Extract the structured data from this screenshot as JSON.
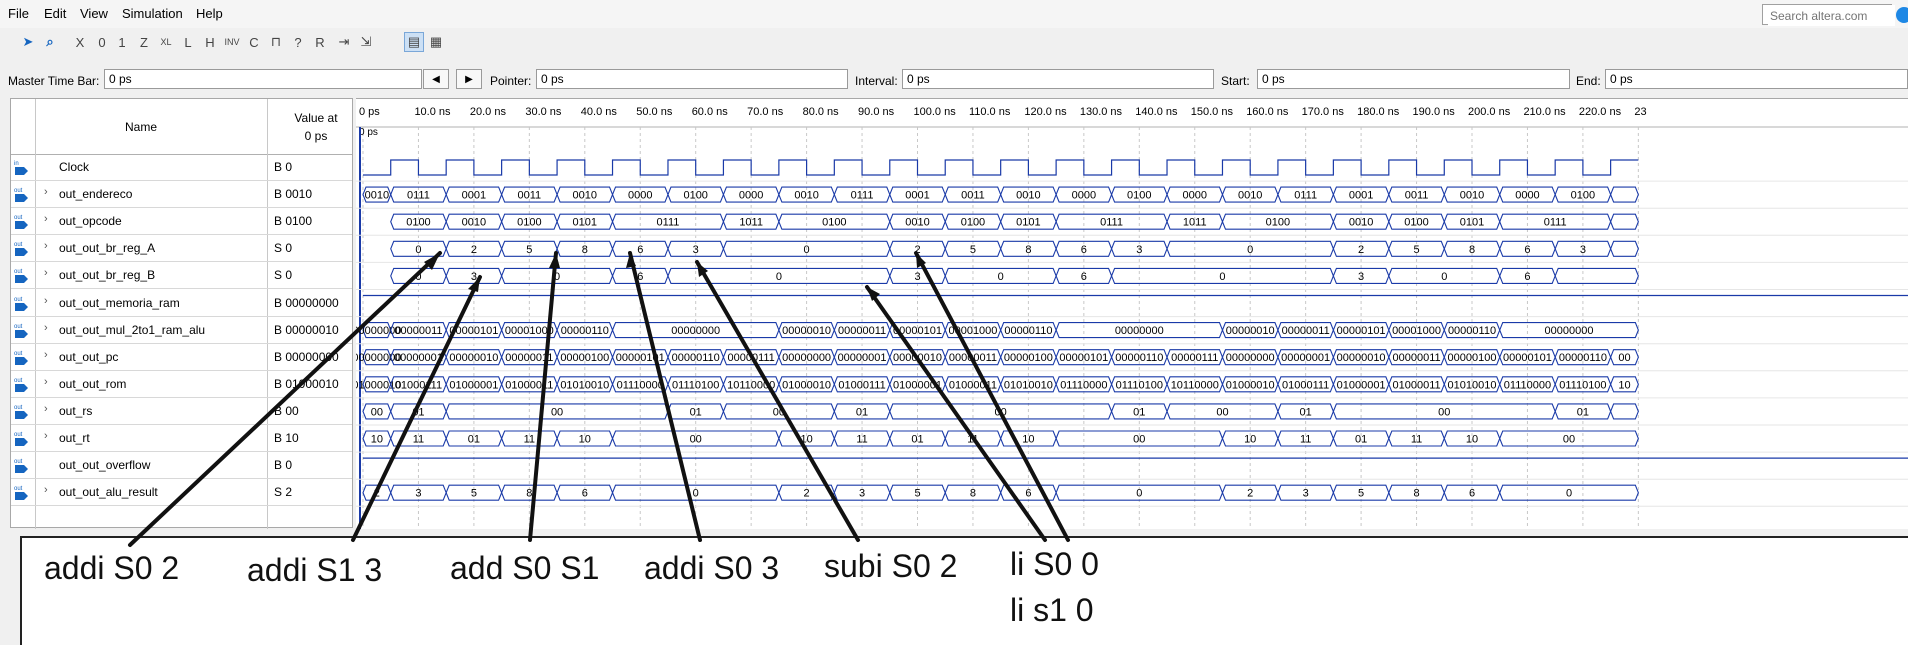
{
  "menu": [
    "File",
    "Edit",
    "View",
    "Simulation",
    "Help"
  ],
  "search": {
    "placeholder": "Search altera.com"
  },
  "toolbar": {
    "icons": [
      "pointer-icon",
      "zoom-icon",
      "force-unknown-icon",
      "force-low-icon",
      "force-high-icon",
      "force-hiz-icon",
      "force-weak-unknown-icon",
      "force-weak-low-icon",
      "force-weak-high-icon",
      "invert-icon",
      "count-value-icon",
      "forcing-clock-icon",
      "arbitrary-value-icon",
      "random-value-icon",
      "snap-to-grid-icon",
      "grid-settings-icon",
      "waveform-view-icon",
      "fit-view-icon"
    ]
  },
  "timebar": {
    "master_label": "Master Time Bar:",
    "master_value": "0 ps",
    "pointer_label": "Pointer:",
    "pointer_value": "0 ps",
    "interval_label": "Interval:",
    "interval_value": "0 ps",
    "start_label": "Start:",
    "start_value": "0 ps",
    "end_label": "End:",
    "end_value": "0 ps"
  },
  "grid": {
    "name_header": "Name",
    "value_header_1": "Value at",
    "value_header_2": "0 ps",
    "time_ticks": [
      "0 ps",
      "10.0 ns",
      "20.0 ns",
      "30.0 ns",
      "40.0 ns",
      "50.0 ns",
      "60.0 ns",
      "70.0 ns",
      "80.0 ns",
      "90.0 ns",
      "100.0 ns",
      "110.0 ns",
      "120.0 ns",
      "130.0 ns",
      "140.0 ns",
      "150.0 ns",
      "160.0 ns",
      "170.0 ns",
      "180.0 ns",
      "190.0 ns",
      "200.0 ns",
      "210.0 ns",
      "220.0 ns",
      "23"
    ],
    "cursor_label": "0 ps"
  },
  "signals": [
    {
      "dir": "in",
      "name": "Clock",
      "value": "B 0",
      "bus": false
    },
    {
      "dir": "out",
      "name": "out_endereco",
      "value": "B 0010",
      "bus": true
    },
    {
      "dir": "out",
      "name": "out_opcode",
      "value": "B 0100",
      "bus": true
    },
    {
      "dir": "out",
      "name": "out_out_br_reg_A",
      "value": "S 0",
      "bus": true
    },
    {
      "dir": "out",
      "name": "out_out_br_reg_B",
      "value": "S 0",
      "bus": true
    },
    {
      "dir": "out",
      "name": "out_out_memoria_ram",
      "value": "B 00000000",
      "bus": true
    },
    {
      "dir": "out",
      "name": "out_out_mul_2to1_ram_alu",
      "value": "B 00000010",
      "bus": true
    },
    {
      "dir": "out",
      "name": "out_out_pc",
      "value": "B 00000000",
      "bus": true
    },
    {
      "dir": "out",
      "name": "out_out_rom",
      "value": "B 01000010",
      "bus": true
    },
    {
      "dir": "out",
      "name": "out_rs",
      "value": "B 00",
      "bus": true
    },
    {
      "dir": "out",
      "name": "out_rt",
      "value": "B 10",
      "bus": true
    },
    {
      "dir": "out",
      "name": "out_out_overflow",
      "value": "B 0",
      "bus": false
    },
    {
      "dir": "out",
      "name": "out_out_alu_result",
      "value": "S 2",
      "bus": true
    }
  ],
  "waves": {
    "out_endereco": [
      [
        "0010",
        0,
        1
      ],
      [
        "0111",
        1,
        3
      ],
      [
        "0001",
        3,
        5
      ],
      [
        "0011",
        5,
        7
      ],
      [
        "0010",
        7,
        9
      ],
      [
        "0000",
        9,
        11
      ],
      [
        "0100",
        11,
        13
      ],
      [
        "0000",
        13,
        15
      ],
      [
        "0010",
        15,
        17
      ],
      [
        "0111",
        17,
        19
      ],
      [
        "0001",
        19,
        21
      ],
      [
        "0011",
        21,
        23
      ],
      [
        "0010",
        23,
        25
      ],
      [
        "0000",
        25,
        27
      ],
      [
        "0100",
        27,
        29
      ],
      [
        "0000",
        29,
        31
      ],
      [
        "0010",
        31,
        33
      ],
      [
        "0111",
        33,
        35
      ],
      [
        "0001",
        35,
        37
      ],
      [
        "0011",
        37,
        39
      ],
      [
        "0010",
        39,
        41
      ],
      [
        "0000",
        41,
        43
      ],
      [
        "0100",
        43,
        45
      ],
      [
        "",
        45,
        46
      ]
    ],
    "out_opcode": [
      [
        "0100",
        1,
        3
      ],
      [
        "0010",
        3,
        5
      ],
      [
        "0100",
        5,
        7
      ],
      [
        "0101",
        7,
        9
      ],
      [
        "0111",
        9,
        13
      ],
      [
        "1011",
        13,
        15
      ],
      [
        "0100",
        15,
        19
      ],
      [
        "0010",
        19,
        21
      ],
      [
        "0100",
        21,
        23
      ],
      [
        "0101",
        23,
        25
      ],
      [
        "0111",
        25,
        29
      ],
      [
        "1011",
        29,
        31
      ],
      [
        "0100",
        31,
        35
      ],
      [
        "0010",
        35,
        37
      ],
      [
        "0100",
        37,
        39
      ],
      [
        "0101",
        39,
        41
      ],
      [
        "0111",
        41,
        45
      ],
      [
        "",
        45,
        46
      ]
    ],
    "out_out_br_reg_A": [
      [
        "0",
        1,
        3
      ],
      [
        "2",
        3,
        5
      ],
      [
        "5",
        5,
        7
      ],
      [
        "8",
        7,
        9
      ],
      [
        "6",
        9,
        11
      ],
      [
        "3",
        11,
        13
      ],
      [
        "0",
        13,
        19
      ],
      [
        "2",
        19,
        21
      ],
      [
        "5",
        21,
        23
      ],
      [
        "8",
        23,
        25
      ],
      [
        "6",
        25,
        27
      ],
      [
        "3",
        27,
        29
      ],
      [
        "0",
        29,
        35
      ],
      [
        "2",
        35,
        37
      ],
      [
        "5",
        37,
        39
      ],
      [
        "8",
        39,
        41
      ],
      [
        "6",
        41,
        43
      ],
      [
        "3",
        43,
        45
      ],
      [
        "",
        45,
        46
      ]
    ],
    "out_out_br_reg_B": [
      [
        "0",
        1,
        3
      ],
      [
        "3",
        3,
        5
      ],
      [
        "0",
        5,
        9
      ],
      [
        "6",
        9,
        11
      ],
      [
        "0",
        11,
        19
      ],
      [
        "3",
        19,
        21
      ],
      [
        "0",
        21,
        25
      ],
      [
        "6",
        25,
        27
      ],
      [
        "0",
        27,
        35
      ],
      [
        "3",
        35,
        37
      ],
      [
        "0",
        37,
        41
      ],
      [
        "6",
        41,
        43
      ],
      [
        "",
        43,
        46
      ]
    ],
    "out_out_memoria_ram": [],
    "out_out_mul_2to1_ram_alu": [
      [
        "00000000",
        0,
        1
      ],
      [
        "00000011",
        1,
        3
      ],
      [
        "00000101",
        3,
        5
      ],
      [
        "00001000",
        5,
        7
      ],
      [
        "00000110",
        7,
        9
      ],
      [
        "00000000",
        9,
        15
      ],
      [
        "00000010",
        15,
        17
      ],
      [
        "00000011",
        17,
        19
      ],
      [
        "00000101",
        19,
        21
      ],
      [
        "00001000",
        21,
        23
      ],
      [
        "00000110",
        23,
        25
      ],
      [
        "00000000",
        25,
        31
      ],
      [
        "00000010",
        31,
        33
      ],
      [
        "00000011",
        33,
        35
      ],
      [
        "00000101",
        35,
        37
      ],
      [
        "00001000",
        37,
        39
      ],
      [
        "00000110",
        39,
        41
      ],
      [
        "00000000",
        41,
        46
      ]
    ],
    "out_out_pc": [
      [
        "00000000",
        0,
        1
      ],
      [
        "00000001",
        1,
        3
      ],
      [
        "00000010",
        3,
        5
      ],
      [
        "00000011",
        5,
        7
      ],
      [
        "00000100",
        7,
        9
      ],
      [
        "00000101",
        9,
        11
      ],
      [
        "00000110",
        11,
        13
      ],
      [
        "00000111",
        13,
        15
      ],
      [
        "00000000",
        15,
        17
      ],
      [
        "00000001",
        17,
        19
      ],
      [
        "00000010",
        19,
        21
      ],
      [
        "00000011",
        21,
        23
      ],
      [
        "00000100",
        23,
        25
      ],
      [
        "00000101",
        25,
        27
      ],
      [
        "00000110",
        27,
        29
      ],
      [
        "00000111",
        29,
        31
      ],
      [
        "00000000",
        31,
        33
      ],
      [
        "00000001",
        33,
        35
      ],
      [
        "00000010",
        35,
        37
      ],
      [
        "00000011",
        37,
        39
      ],
      [
        "00000100",
        39,
        41
      ],
      [
        "00000101",
        41,
        43
      ],
      [
        "00000110",
        43,
        45
      ],
      [
        "00",
        45,
        46
      ]
    ],
    "out_out_rom": [
      [
        "01000010",
        0,
        1
      ],
      [
        "01000111",
        1,
        3
      ],
      [
        "01000001",
        3,
        5
      ],
      [
        "01000011",
        5,
        7
      ],
      [
        "01010010",
        7,
        9
      ],
      [
        "01110000",
        9,
        11
      ],
      [
        "01110100",
        11,
        13
      ],
      [
        "10110000",
        13,
        15
      ],
      [
        "01000010",
        15,
        17
      ],
      [
        "01000111",
        17,
        19
      ],
      [
        "01000001",
        19,
        21
      ],
      [
        "01000011",
        21,
        23
      ],
      [
        "01010010",
        23,
        25
      ],
      [
        "01110000",
        25,
        27
      ],
      [
        "01110100",
        27,
        29
      ],
      [
        "10110000",
        29,
        31
      ],
      [
        "01000010",
        31,
        33
      ],
      [
        "01000111",
        33,
        35
      ],
      [
        "01000001",
        35,
        37
      ],
      [
        "01000011",
        37,
        39
      ],
      [
        "01010010",
        39,
        41
      ],
      [
        "01110000",
        41,
        43
      ],
      [
        "01110100",
        43,
        45
      ],
      [
        "10",
        45,
        46
      ]
    ],
    "out_rs": [
      [
        "00",
        0,
        1
      ],
      [
        "01",
        1,
        3
      ],
      [
        "00",
        3,
        11
      ],
      [
        "01",
        11,
        13
      ],
      [
        "00",
        13,
        17
      ],
      [
        "01",
        17,
        19
      ],
      [
        "00",
        19,
        27
      ],
      [
        "01",
        27,
        29
      ],
      [
        "00",
        29,
        33
      ],
      [
        "01",
        33,
        35
      ],
      [
        "00",
        35,
        43
      ],
      [
        "01",
        43,
        45
      ],
      [
        "",
        45,
        46
      ]
    ],
    "out_rt": [
      [
        "10",
        0,
        1
      ],
      [
        "11",
        1,
        3
      ],
      [
        "01",
        3,
        5
      ],
      [
        "11",
        5,
        7
      ],
      [
        "10",
        7,
        9
      ],
      [
        "00",
        9,
        15
      ],
      [
        "10",
        15,
        17
      ],
      [
        "11",
        17,
        19
      ],
      [
        "01",
        19,
        21
      ],
      [
        "11",
        21,
        23
      ],
      [
        "10",
        23,
        25
      ],
      [
        "00",
        25,
        31
      ],
      [
        "10",
        31,
        33
      ],
      [
        "11",
        33,
        35
      ],
      [
        "01",
        35,
        37
      ],
      [
        "11",
        37,
        39
      ],
      [
        "10",
        39,
        41
      ],
      [
        "00",
        41,
        46
      ]
    ],
    "out_out_overflow": [],
    "out_out_alu_result": [
      [
        "2",
        0,
        1
      ],
      [
        "3",
        1,
        3
      ],
      [
        "5",
        3,
        5
      ],
      [
        "8",
        5,
        7
      ],
      [
        "6",
        7,
        9
      ],
      [
        "0",
        9,
        15
      ],
      [
        "2",
        15,
        17
      ],
      [
        "3",
        17,
        19
      ],
      [
        "5",
        19,
        21
      ],
      [
        "8",
        21,
        23
      ],
      [
        "6",
        23,
        25
      ],
      [
        "0",
        25,
        31
      ],
      [
        "2",
        31,
        33
      ],
      [
        "3",
        33,
        35
      ],
      [
        "5",
        35,
        37
      ],
      [
        "8",
        37,
        39
      ],
      [
        "6",
        39,
        41
      ],
      [
        "0",
        41,
        46
      ]
    ]
  },
  "annotations": [
    "addi S0 2",
    "addi S1 3",
    "add S0 S1",
    "addi S0 3",
    "subi S0 2",
    "li S0 0",
    "li s1 0"
  ]
}
